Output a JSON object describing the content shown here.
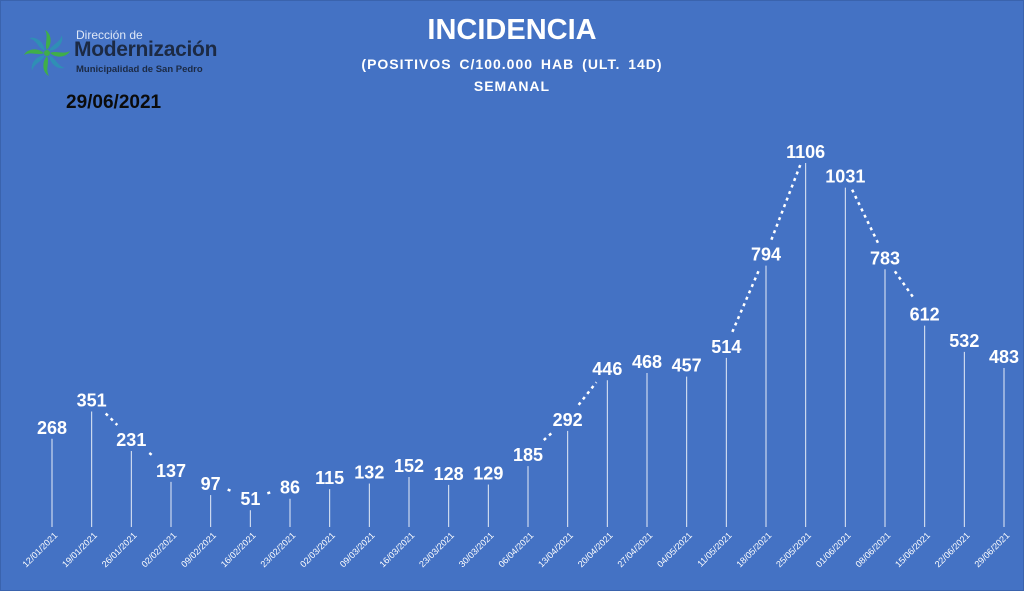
{
  "header": {
    "title": "INCIDENCIA",
    "subtitle": "(POSITIVOS C/100.000 HAB (ULT. 14D)",
    "subtitle2": "SEMANAL",
    "date": "29/06/2021"
  },
  "logo": {
    "top": "Dirección de",
    "main": "Modernización",
    "sub": "Municipalidad de San Pedro",
    "icon": "leaf-star-icon"
  },
  "colors": {
    "background": "#4472C4",
    "text": "#ffffff",
    "line": "#ffffff",
    "logo_green": "#3fae49"
  },
  "chart_data": {
    "type": "line",
    "title": "INCIDENCIA",
    "subtitle": "(POSITIVOS C/100.000 HAB (ULT. 14D)",
    "xlabel": "",
    "ylabel": "",
    "grid": false,
    "legend": "none",
    "ylim": [
      0,
      1106
    ],
    "categories": [
      "12/01/2021",
      "19/01/2021",
      "26/01/2021",
      "02/02/2021",
      "09/02/2021",
      "16/02/2021",
      "23/02/2021",
      "02/03/2021",
      "09/03/2021",
      "16/03/2021",
      "23/03/2021",
      "30/03/2021",
      "06/04/2021",
      "13/04/2021",
      "20/04/2021",
      "27/04/2021",
      "04/05/2021",
      "11/05/2021",
      "18/05/2021",
      "25/05/2021",
      "01/06/2021",
      "08/06/2021",
      "15/06/2021",
      "22/06/2021",
      "29/06/2021"
    ],
    "series": [
      {
        "values": [
          268,
          351,
          231,
          137,
          97,
          51,
          86,
          115,
          132,
          152,
          128,
          129,
          185,
          292,
          446,
          468,
          457,
          514,
          794,
          1106,
          1031,
          783,
          612,
          532,
          483
        ],
        "labels": [
          "268",
          "351",
          "231",
          "137",
          "97",
          "51",
          "86",
          "115",
          "132",
          "152",
          "128",
          "129",
          "185",
          "292",
          "446",
          "468",
          "457",
          "514",
          "794",
          "1106",
          "1031",
          "783",
          "612",
          "532",
          "483"
        ]
      }
    ]
  }
}
